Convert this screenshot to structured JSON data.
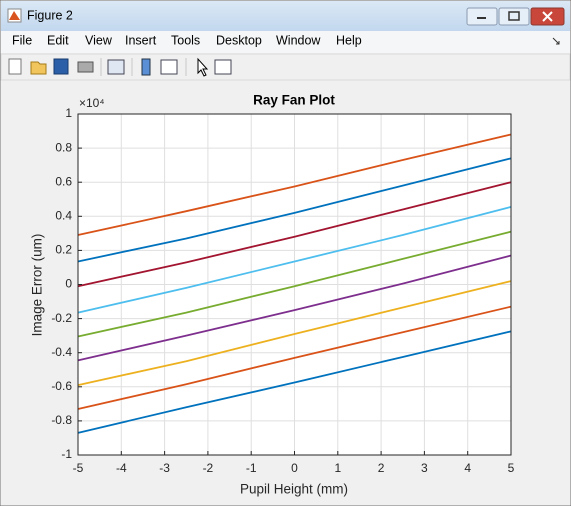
{
  "window": {
    "title": "Figure 2",
    "menu": [
      "File",
      "Edit",
      "View",
      "Insert",
      "Tools",
      "Desktop",
      "Window",
      "Help"
    ]
  },
  "chart_data": {
    "type": "line",
    "title": "Ray Fan Plot",
    "x_label": "Pupil Height (mm)",
    "y_label": "Image Error (um)",
    "y_exponent_label": "×10⁴",
    "x": [
      -5,
      -2.5,
      0,
      2.5,
      5
    ],
    "series": [
      {
        "color": "#D95319",
        "values": [
          0.29,
          0.43,
          0.575,
          0.73,
          0.88
        ]
      },
      {
        "color": "#0072BD",
        "values": [
          0.135,
          0.27,
          0.42,
          0.58,
          0.74
        ]
      },
      {
        "color": "#A2142F",
        "values": [
          -0.01,
          0.13,
          0.28,
          0.44,
          0.6
        ]
      },
      {
        "color": "#4DBEEE",
        "values": [
          -0.165,
          -0.02,
          0.135,
          0.29,
          0.455
        ]
      },
      {
        "color": "#77AC30",
        "values": [
          -0.305,
          -0.165,
          -0.01,
          0.15,
          0.31
        ]
      },
      {
        "color": "#7E2F8E",
        "values": [
          -0.445,
          -0.3,
          -0.15,
          0.005,
          0.17
        ]
      },
      {
        "color": "#EDB120",
        "values": [
          -0.59,
          -0.45,
          -0.29,
          -0.135,
          0.02
        ]
      },
      {
        "color": "#D95319",
        "values": [
          -0.73,
          -0.585,
          -0.43,
          -0.28,
          -0.13
        ]
      },
      {
        "color": "#0072BD",
        "values": [
          -0.87,
          -0.72,
          -0.575,
          -0.425,
          -0.275
        ]
      }
    ],
    "xlim": [
      -5,
      5
    ],
    "xticks": [
      -5,
      -4,
      -3,
      -2,
      -1,
      0,
      1,
      2,
      3,
      4,
      5
    ],
    "ylim": [
      -1,
      1
    ],
    "yticks": [
      -1,
      -0.8,
      -0.6,
      -0.4,
      -0.2,
      0,
      0.2,
      0.4,
      0.6,
      0.8,
      1
    ],
    "grid": true
  }
}
